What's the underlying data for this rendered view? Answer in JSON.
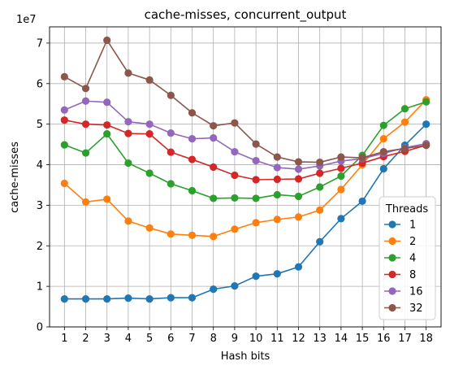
{
  "chart_data": {
    "type": "line",
    "title": "cache-misses, concurrent_output",
    "xlabel": "Hash bits",
    "ylabel": "cache-misses",
    "y_multiplier_label": "1e7",
    "x": [
      1,
      2,
      3,
      4,
      5,
      6,
      7,
      8,
      9,
      10,
      11,
      12,
      13,
      14,
      15,
      16,
      17,
      18
    ],
    "xlim": [
      0.3,
      18.7
    ],
    "ylim": [
      0,
      74000000
    ],
    "y_ticks": [
      0,
      10000000,
      20000000,
      30000000,
      40000000,
      50000000,
      60000000,
      70000000
    ],
    "y_tick_labels": [
      "0",
      "1",
      "2",
      "3",
      "4",
      "5",
      "6",
      "7"
    ],
    "grid": true,
    "legend_title": "Threads",
    "legend_position": "lower-right",
    "series": [
      {
        "name": "1",
        "color": "#1f77b4",
        "values": [
          6900000,
          6900000,
          6900000,
          7100000,
          6900000,
          7200000,
          7200000,
          9300000,
          10100000,
          12500000,
          13100000,
          14800000,
          21000000,
          26700000,
          31000000,
          39000000,
          44800000,
          50000000
        ]
      },
      {
        "name": "2",
        "color": "#ff7f0e",
        "values": [
          35400000,
          30800000,
          31500000,
          26100000,
          24400000,
          22900000,
          22600000,
          22300000,
          24100000,
          25700000,
          26500000,
          27100000,
          28800000,
          33900000,
          40000000,
          46400000,
          50500000,
          56000000
        ]
      },
      {
        "name": "4",
        "color": "#2ca02c",
        "values": [
          44900000,
          42900000,
          47600000,
          40400000,
          37900000,
          35300000,
          33600000,
          31700000,
          31800000,
          31700000,
          32600000,
          32200000,
          34500000,
          37200000,
          42300000,
          49700000,
          53800000,
          55500000
        ]
      },
      {
        "name": "8",
        "color": "#d62728",
        "values": [
          51000000,
          50000000,
          49800000,
          47700000,
          47600000,
          43100000,
          41300000,
          39400000,
          37400000,
          36300000,
          36400000,
          36500000,
          37900000,
          39100000,
          40400000,
          42000000,
          43300000,
          44800000
        ]
      },
      {
        "name": "16",
        "color": "#9467bd",
        "values": [
          53500000,
          55700000,
          55400000,
          50600000,
          50000000,
          47800000,
          46400000,
          46600000,
          43200000,
          41000000,
          39300000,
          38900000,
          39700000,
          40900000,
          41500000,
          42800000,
          44200000,
          45200000
        ]
      },
      {
        "name": "32",
        "color": "#8c564b",
        "values": [
          61700000,
          58800000,
          70700000,
          62600000,
          60900000,
          57100000,
          52800000,
          49600000,
          50300000,
          45100000,
          41900000,
          40700000,
          40600000,
          41900000,
          41700000,
          43200000,
          44000000,
          44800000
        ]
      }
    ]
  }
}
